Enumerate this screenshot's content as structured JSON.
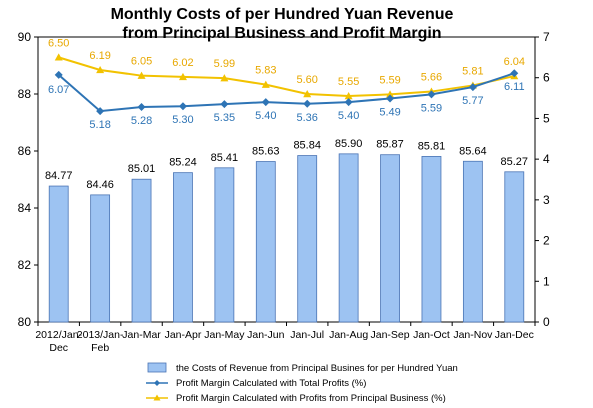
{
  "colors": {
    "bar_fill": "#9dc3f2",
    "bar_stroke": "#4a74b4",
    "total_profit_line": "#2e74b5",
    "principal_profit_line": "#f2c200",
    "principal_profit_label": "#e8a800"
  },
  "chart_data": {
    "type": "bar+line",
    "title_line1": "Monthly Costs of per Hundred Yuan Revenue",
    "title_line2": "from Principal Business and Profit Margin",
    "categories": [
      [
        "2012/Jan-",
        "Dec"
      ],
      [
        "2013/Jan-",
        "Feb"
      ],
      [
        "Jan-Mar"
      ],
      [
        "Jan-Apr"
      ],
      [
        "Jan-May"
      ],
      [
        "Jan-Jun"
      ],
      [
        "Jan-Jul"
      ],
      [
        "Jan-Aug"
      ],
      [
        "Jan-Sep"
      ],
      [
        "Jan-Oct"
      ],
      [
        "Jan-Nov"
      ],
      [
        "Jan-Dec"
      ]
    ],
    "left_axis": {
      "min": 80,
      "max": 90,
      "ticks": [
        80,
        82,
        84,
        86,
        88,
        90
      ]
    },
    "right_axis": {
      "min": 0,
      "max": 7,
      "ticks": [
        0,
        1,
        2,
        3,
        4,
        5,
        6,
        7
      ]
    },
    "series": [
      {
        "name": "the Costs of Revenue from Principal Busines for per Hundred  Yuan",
        "type": "bar",
        "axis": "left",
        "values": [
          84.77,
          84.46,
          85.01,
          85.24,
          85.41,
          85.63,
          85.84,
          85.9,
          85.87,
          85.81,
          85.64,
          85.27
        ],
        "labels": [
          "84.77",
          "84.46",
          "85.01",
          "85.24",
          "85.41",
          "85.63",
          "85.84",
          "85.90",
          "85.87",
          "85.81",
          "85.64",
          "85.27"
        ]
      },
      {
        "name": "Profit Margin Calculated with Total Profits (%)",
        "type": "line",
        "axis": "right",
        "values": [
          6.07,
          5.18,
          5.28,
          5.3,
          5.35,
          5.4,
          5.36,
          5.4,
          5.49,
          5.59,
          5.77,
          6.11
        ],
        "labels": [
          "6.07",
          "5.18",
          "5.28",
          "5.30",
          "5.35",
          "5.40",
          "5.36",
          "5.40",
          "5.49",
          "5.59",
          "5.77",
          "6.11"
        ]
      },
      {
        "name": "Profit Margin Calculated with Profits from Principal Business (%)",
        "type": "line",
        "axis": "right",
        "values": [
          6.5,
          6.19,
          6.05,
          6.02,
          5.99,
          5.83,
          5.6,
          5.55,
          5.59,
          5.66,
          5.81,
          6.04
        ],
        "labels": [
          "6.50",
          "6.19",
          "6.05",
          "6.02",
          "5.99",
          "5.83",
          "5.60",
          "5.55",
          "5.59",
          "5.66",
          "5.81",
          "6.04"
        ]
      }
    ],
    "legend_position": "bottom"
  }
}
